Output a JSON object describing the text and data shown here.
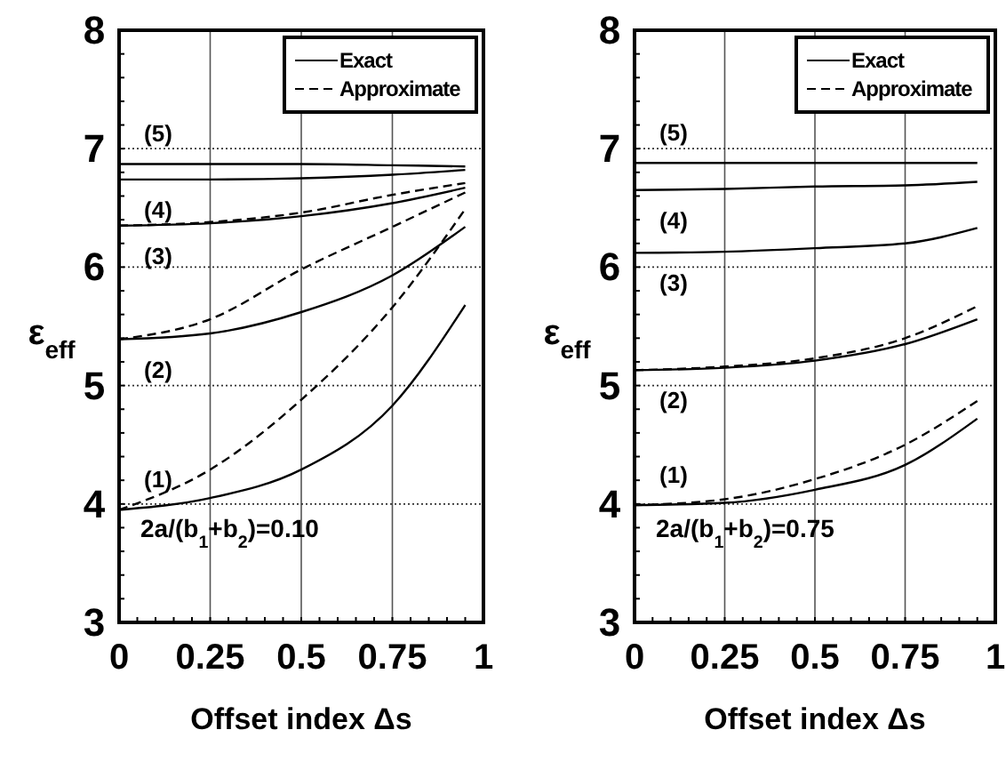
{
  "chart_data": [
    {
      "type": "line",
      "xlabel": "Offset index Δs",
      "ylabel": "ε$_{eff}$",
      "xlim": [
        0,
        1
      ],
      "ylim": [
        3,
        8
      ],
      "xticks": [
        0,
        0.25,
        0.5,
        0.75,
        1
      ],
      "yticks": [
        3,
        4,
        5,
        6,
        7,
        8
      ],
      "grid": true,
      "legend": "top right",
      "series": [
        {
          "name": "Exact",
          "color": "#000000",
          "line_style": "solid",
          "x": [
            0,
            0.25,
            0.5,
            0.75,
            0.95
          ],
          "values": [
            3.95,
            4.05,
            4.29,
            4.83,
            5.68
          ]
        },
        {
          "name": "Approximate",
          "color": "#000000",
          "line_style": "dashed",
          "x": [
            0,
            0.25,
            0.5,
            0.75,
            0.95
          ],
          "values": [
            3.95,
            4.29,
            4.88,
            5.66,
            6.49
          ]
        },
        {
          "color": "#000000",
          "line_style": "solid",
          "x": [
            0,
            0.25,
            0.5,
            0.75,
            0.95
          ],
          "values": [
            5.39,
            5.44,
            5.62,
            5.93,
            6.34
          ]
        },
        {
          "color": "#000000",
          "line_style": "dashed",
          "x": [
            0,
            0.25,
            0.5,
            0.75,
            0.95
          ],
          "values": [
            5.39,
            5.56,
            5.98,
            6.34,
            6.63
          ]
        },
        {
          "color": "#000000",
          "line_style": "solid",
          "x": [
            0,
            0.25,
            0.5,
            0.75,
            0.95
          ],
          "values": [
            6.35,
            6.37,
            6.43,
            6.54,
            6.67
          ]
        },
        {
          "color": "#000000",
          "line_style": "dashed",
          "x": [
            0,
            0.25,
            0.5,
            0.75,
            0.95
          ],
          "values": [
            6.35,
            6.38,
            6.46,
            6.61,
            6.71
          ]
        },
        {
          "color": "#000000",
          "line_style": "solid",
          "x": [
            0,
            0.25,
            0.5,
            0.75,
            0.95
          ],
          "values": [
            6.74,
            6.74,
            6.75,
            6.78,
            6.82
          ]
        },
        {
          "color": "#000000",
          "line_style": "solid",
          "x": [
            0,
            0.25,
            0.5,
            0.75,
            0.95
          ],
          "values": [
            6.87,
            6.87,
            6.87,
            6.86,
            6.85
          ]
        }
      ],
      "annotations": [
        "(1)",
        "(2)",
        "(3)",
        "(4)",
        "(5)",
        "2a/(b$_{1}$+b$_{2}$)=0.10"
      ]
    },
    {
      "type": "line",
      "xlabel": "Offset index Δs",
      "ylabel": "ε$_{eff}$",
      "xlim": [
        0,
        1
      ],
      "ylim": [
        3,
        8
      ],
      "xticks": [
        0,
        0.25,
        0.5,
        0.75,
        1
      ],
      "yticks": [
        3,
        4,
        5,
        6,
        7,
        8
      ],
      "grid": true,
      "legend": "top right",
      "series": [
        {
          "name": "Exact",
          "color": "#000000",
          "line_style": "solid",
          "x": [
            0,
            0.25,
            0.5,
            0.75,
            0.95
          ],
          "values": [
            3.99,
            4.01,
            4.12,
            4.33,
            4.72
          ]
        },
        {
          "name": "Approximate",
          "color": "#000000",
          "line_style": "dashed",
          "x": [
            0,
            0.25,
            0.5,
            0.75,
            0.95
          ],
          "values": [
            3.99,
            4.04,
            4.21,
            4.5,
            4.87
          ]
        },
        {
          "color": "#000000",
          "line_style": "solid",
          "x": [
            0,
            0.25,
            0.5,
            0.75,
            0.95
          ],
          "values": [
            5.13,
            5.15,
            5.21,
            5.35,
            5.56
          ]
        },
        {
          "color": "#000000",
          "line_style": "dashed",
          "x": [
            0,
            0.25,
            0.5,
            0.75,
            0.95
          ],
          "values": [
            5.13,
            5.16,
            5.23,
            5.4,
            5.67
          ]
        },
        {
          "color": "#000000",
          "line_style": "solid",
          "x": [
            0,
            0.25,
            0.5,
            0.75,
            0.95
          ],
          "values": [
            6.12,
            6.13,
            6.16,
            6.2,
            6.33
          ]
        },
        {
          "color": "#000000",
          "line_style": "solid",
          "x": [
            0,
            0.25,
            0.5,
            0.75,
            0.95
          ],
          "values": [
            6.65,
            6.66,
            6.68,
            6.69,
            6.72
          ]
        },
        {
          "color": "#000000",
          "line_style": "solid",
          "x": [
            0,
            0.25,
            0.5,
            0.75,
            0.95
          ],
          "values": [
            6.88,
            6.88,
            6.88,
            6.88,
            6.88
          ]
        }
      ],
      "annotations": [
        "(1)",
        "(2)",
        "(3)",
        "(4)",
        "(5)",
        "2a/(b$_{1}$+b$_{2}$)=0.75"
      ]
    }
  ]
}
